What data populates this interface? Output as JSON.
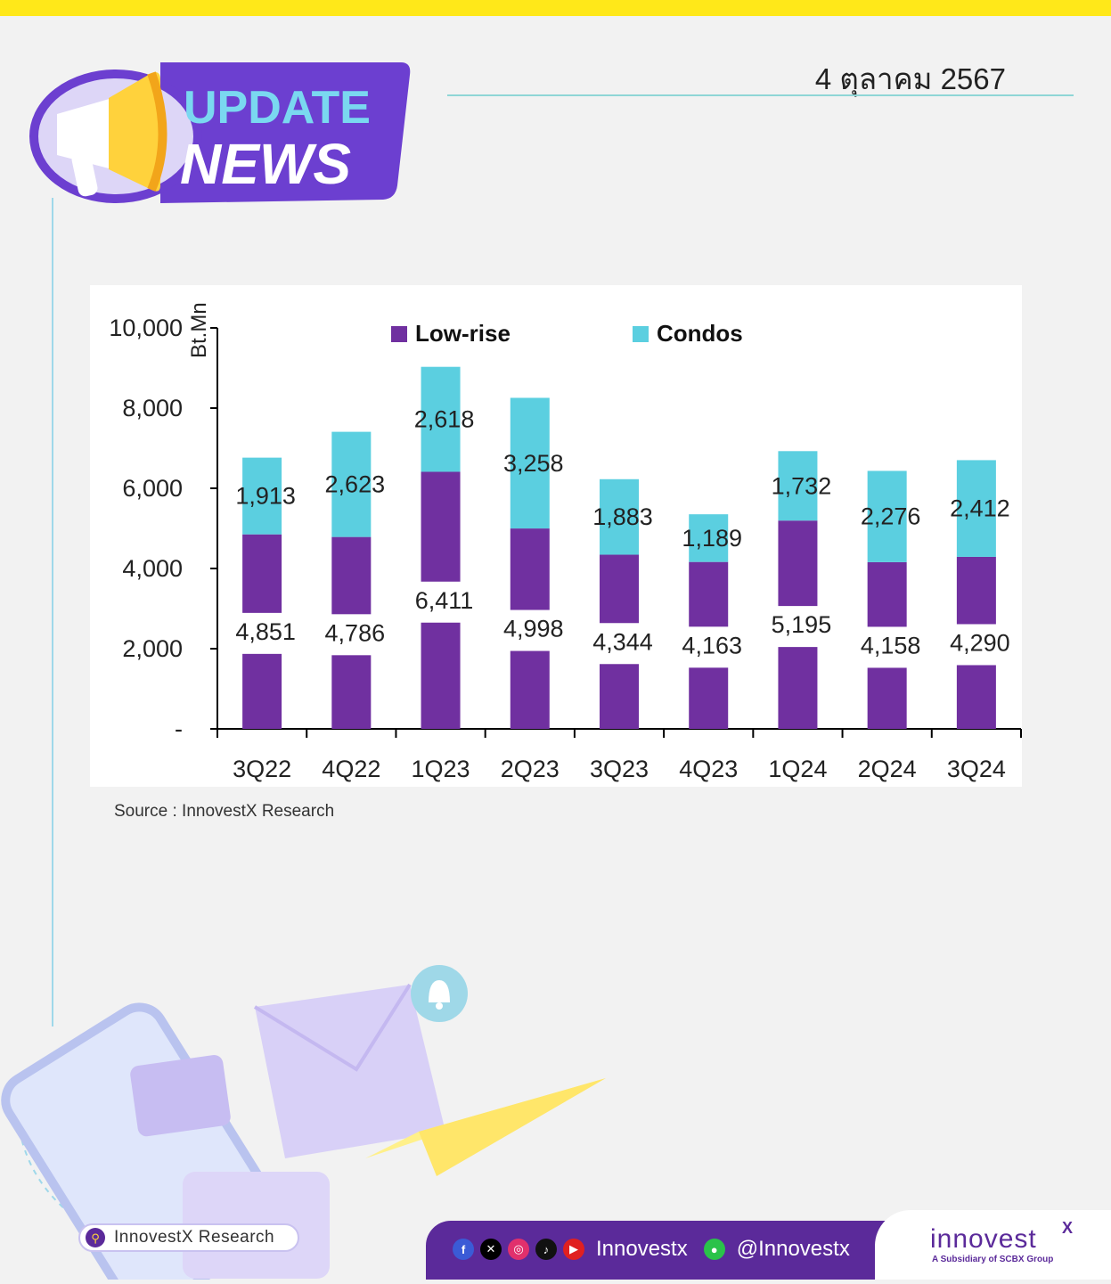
{
  "header": {
    "badge_line1": "UPDATE",
    "badge_line2": "NEWS",
    "date": "4 ตุลาคม 2567",
    "megaphone_icon": "megaphone-icon"
  },
  "colors": {
    "top_bar": "#ffe819",
    "badge": "#6c3fd0",
    "low_rise": "#7030a0",
    "condos": "#5bcfe0",
    "footer": "#5b2a9a"
  },
  "chart_data": {
    "type": "bar",
    "stacked": true,
    "categories": [
      "3Q22",
      "4Q22",
      "1Q23",
      "2Q23",
      "3Q23",
      "4Q23",
      "1Q24",
      "2Q24",
      "3Q24"
    ],
    "series": [
      {
        "name": "Low-rise",
        "values": [
          4851,
          4786,
          6411,
          4998,
          4344,
          4163,
          5195,
          4158,
          4290
        ]
      },
      {
        "name": "Condos",
        "values": [
          1913,
          2623,
          2618,
          3258,
          1883,
          1189,
          1732,
          2276,
          2412
        ]
      }
    ],
    "ylabel": "Bt.Mn",
    "ylim": [
      0,
      10000
    ],
    "yticks": [
      0,
      2000,
      4000,
      6000,
      8000,
      10000
    ],
    "ytick_labels": [
      "-",
      "2,000",
      "4,000",
      "6,000",
      "8,000",
      "10,000"
    ],
    "legend_position": "top",
    "grid": false
  },
  "source": "Source : InnovestX Research",
  "footer": {
    "research_label": "InnovestX Research",
    "social_icons": [
      "facebook-icon",
      "x-icon",
      "instagram-icon",
      "tiktok-icon",
      "youtube-icon"
    ],
    "handle1": "Innovestx",
    "line_icon": "line-icon",
    "handle2": "@Innovestx",
    "logo_text": "innovest",
    "logo_superscript": "X",
    "logo_subtitle": "A Subsidiary of SCBX Group"
  }
}
